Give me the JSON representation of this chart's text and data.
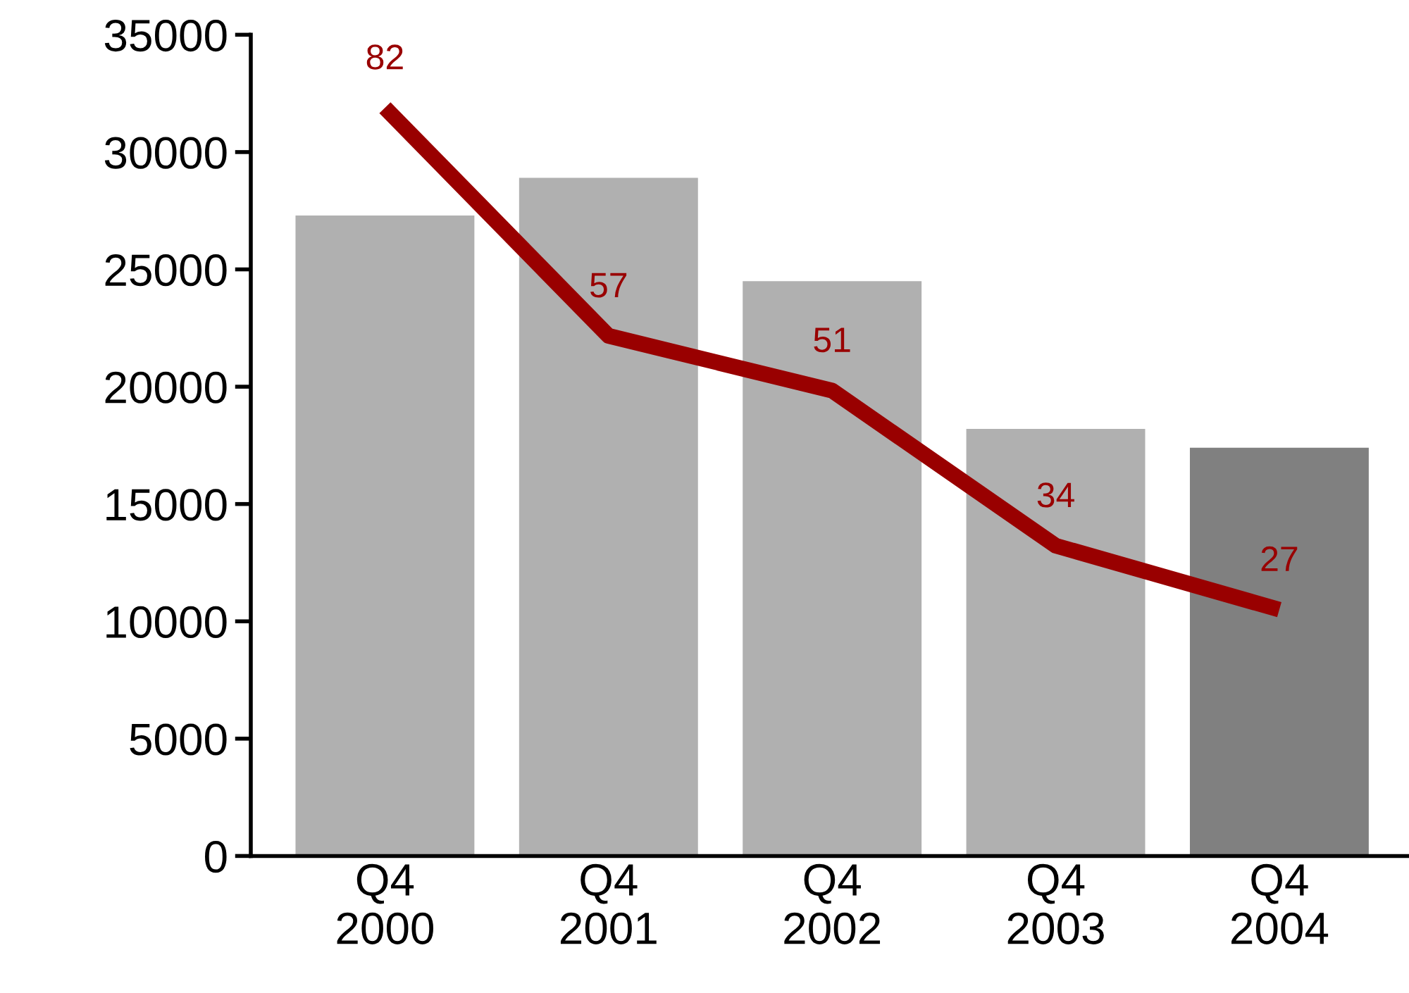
{
  "chart_data": {
    "type": "bar",
    "categories": [
      "Q4\n2000",
      "Q4\n2001",
      "Q4\n2002",
      "Q4\n2003",
      "Q4\n2004"
    ],
    "series": [
      {
        "colors": [
          "#b0b0b0",
          "#b0b0b0",
          "#b0b0b0",
          "#b0b0b0",
          "#808080"
        ],
        "values": [
          27300,
          28900,
          24500,
          18200,
          17400
        ]
      },
      {
        "type": "line",
        "axis": "y2",
        "color": "#990000",
        "values": [
          82,
          57,
          51,
          34,
          27
        ],
        "data_labels": true,
        "line_style": "solid",
        "marker": "none"
      }
    ],
    "ylim": [
      0,
      35000
    ],
    "yticks": [
      0,
      5000,
      10000,
      15000,
      20000,
      25000,
      30000,
      35000
    ],
    "y2lim": [
      0,
      90
    ],
    "grid": false,
    "legend": false
  }
}
